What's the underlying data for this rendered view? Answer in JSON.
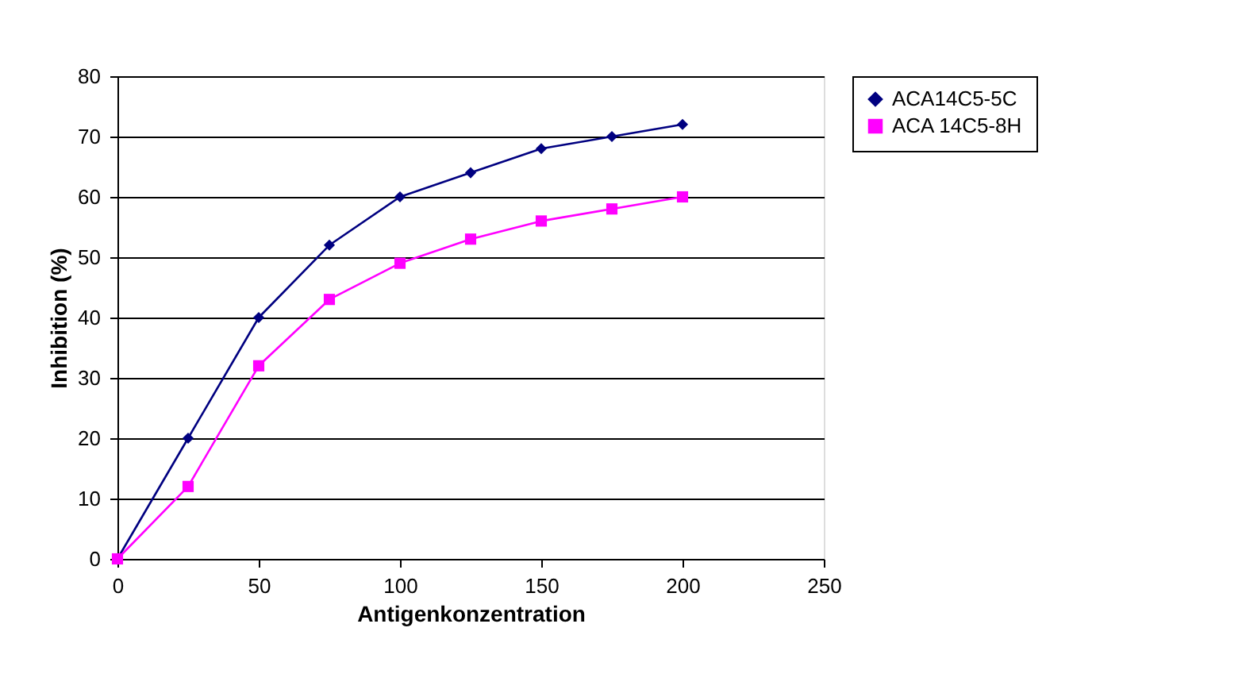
{
  "chart_data": {
    "type": "line",
    "xlabel": "Antigenkonzentration",
    "ylabel": "Inhibition (%)",
    "x": [
      0,
      25,
      50,
      75,
      100,
      125,
      150,
      175,
      200
    ],
    "series": [
      {
        "name": "ACA14C5-5C",
        "color": "#000080",
        "marker": "diamond",
        "values": [
          0,
          20,
          40,
          52,
          60,
          64,
          68,
          70,
          72
        ]
      },
      {
        "name": "ACA 14C5-8H",
        "color": "#ff00ff",
        "marker": "square",
        "values": [
          0,
          12,
          32,
          43,
          49,
          53,
          56,
          58,
          60
        ]
      }
    ],
    "xlim": [
      0,
      250
    ],
    "xticks": [
      0,
      50,
      100,
      150,
      200,
      250
    ],
    "ylim": [
      0,
      80
    ],
    "yticks": [
      0,
      10,
      20,
      30,
      40,
      50,
      60,
      70,
      80
    ],
    "grid": "y",
    "legend": "right",
    "line_style": "solid"
  }
}
